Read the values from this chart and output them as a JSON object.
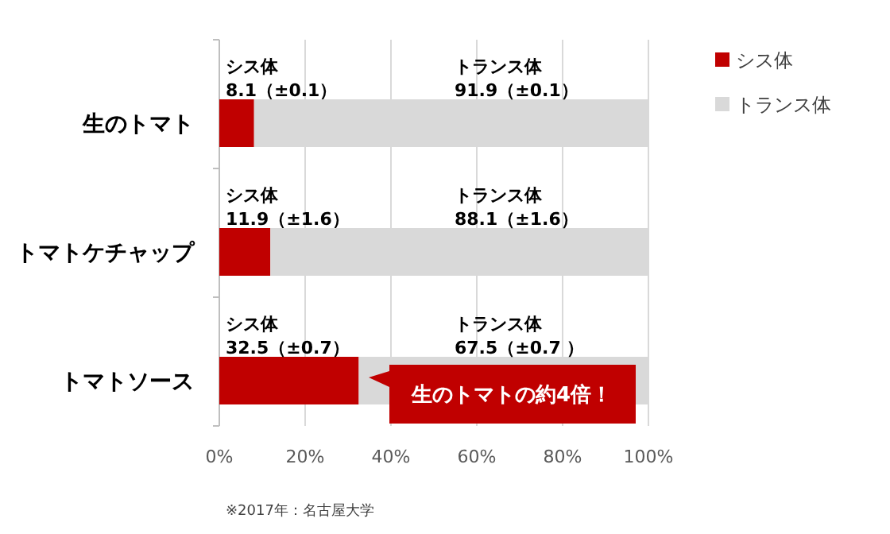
{
  "chart_data": {
    "type": "bar",
    "orientation": "horizontal",
    "stacked": true,
    "categories": [
      "生のトマト",
      "トマトケチャップ",
      "トマトソース"
    ],
    "series": [
      {
        "name": "シス体",
        "color": "#c00000",
        "values": [
          8.1,
          11.9,
          32.5
        ],
        "value_labels": [
          "8.1（±0.1）",
          "11.9（±1.6）",
          "32.5（±0.7）"
        ]
      },
      {
        "name": "トランス体",
        "color": "#d9d9d9",
        "values": [
          91.9,
          88.1,
          67.5
        ],
        "value_labels": [
          "91.9（±0.1）",
          "88.1（±1.6）",
          "67.5（±0.7 ）"
        ]
      }
    ],
    "xlim": [
      0,
      100
    ],
    "xticks": [
      {
        "value": 0,
        "label": "0%"
      },
      {
        "value": 20,
        "label": "20%"
      },
      {
        "value": 40,
        "label": "40%"
      },
      {
        "value": 60,
        "label": "60%"
      },
      {
        "value": 80,
        "label": "80%"
      },
      {
        "value": 100,
        "label": "100%"
      }
    ],
    "grid": "x",
    "legend": "top right",
    "annotations": [
      "生のトマトの約4倍！",
      "※2017年：名古屋大学"
    ]
  }
}
